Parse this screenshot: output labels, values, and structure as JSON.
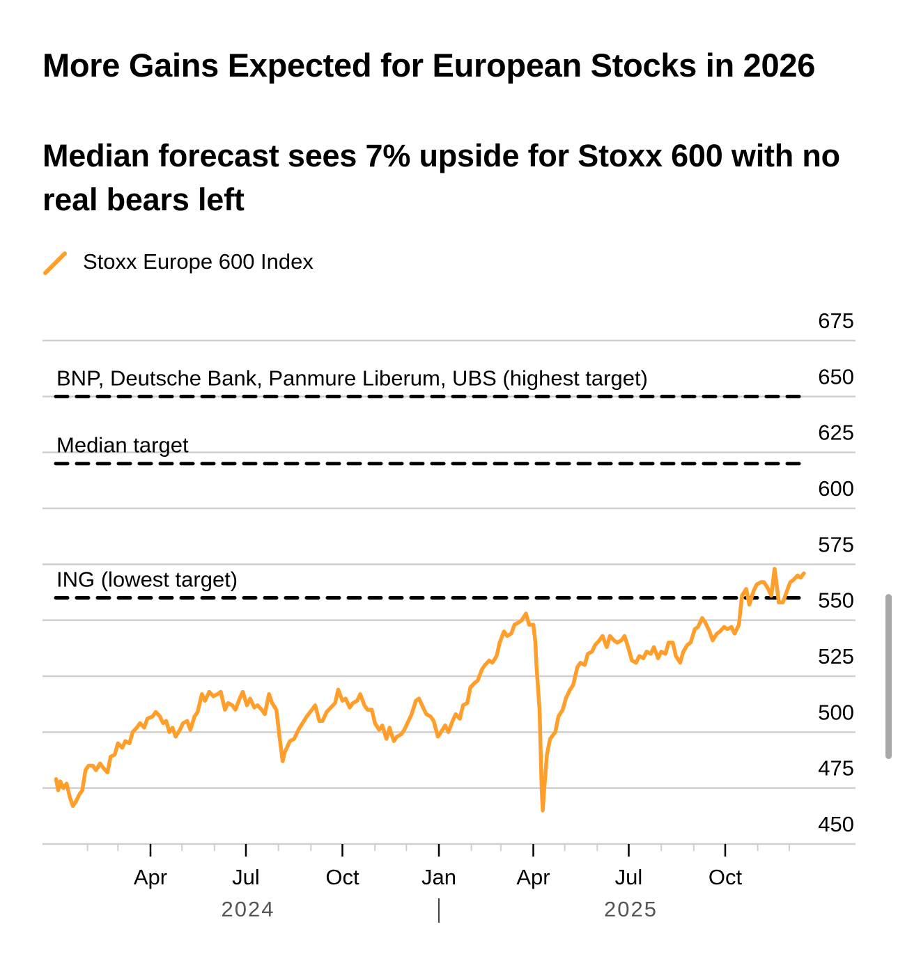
{
  "header": {
    "title": "More Gains Expected for European Stocks in 2026",
    "subtitle": "Median forecast sees 7% upside for Stoxx 600 with no real bears left"
  },
  "legend": {
    "label": "Stoxx Europe 600 Index",
    "color": "#ff9e2a"
  },
  "colors": {
    "line": "#ff9e2a",
    "grid": "#cfcfcf",
    "reference": "#000000",
    "year_label": "#555555"
  },
  "chart_data": {
    "type": "line",
    "title": "More Gains Expected for European Stocks in 2026",
    "subtitle": "Median forecast sees 7% upside for Stoxx 600 with no real bears left",
    "xlabel": "",
    "ylabel": "",
    "ylim": [
      450,
      675
    ],
    "yticks": [
      675,
      650,
      625,
      600,
      575,
      550,
      525,
      500,
      475,
      450
    ],
    "y_axis_position": "right",
    "grid": true,
    "legend_position": "top-left",
    "x_range": [
      "2024-01-01",
      "2025-12-31"
    ],
    "xticks": [
      {
        "date": "2024-04-01",
        "label": "Apr"
      },
      {
        "date": "2024-07-01",
        "label": "Jul"
      },
      {
        "date": "2024-10-01",
        "label": "Oct"
      },
      {
        "date": "2025-01-01",
        "label": "Jan"
      },
      {
        "date": "2025-04-01",
        "label": "Apr"
      },
      {
        "date": "2025-07-01",
        "label": "Jul"
      },
      {
        "date": "2025-10-01",
        "label": "Oct"
      }
    ],
    "year_labels": [
      {
        "label": "2024",
        "date": "2024-07-01"
      },
      {
        "label": "2025",
        "date": "2025-07-01"
      }
    ],
    "year_divider": "2025-01-01",
    "reference_lines": [
      {
        "value": 650,
        "label": "BNP, Deutsche Bank, Panmure Liberum, UBS (highest target)"
      },
      {
        "value": 620,
        "label": "Median target"
      },
      {
        "value": 560,
        "label": "ING (lowest target)"
      }
    ],
    "series": [
      {
        "name": "Stoxx Europe 600 Index",
        "points": [
          [
            "2024-01-02",
            479
          ],
          [
            "2024-01-04",
            474
          ],
          [
            "2024-01-06",
            478
          ],
          [
            "2024-01-09",
            475
          ],
          [
            "2024-01-12",
            477
          ],
          [
            "2024-01-15",
            471
          ],
          [
            "2024-01-18",
            467
          ],
          [
            "2024-01-21",
            469
          ],
          [
            "2024-01-24",
            472
          ],
          [
            "2024-01-27",
            474
          ],
          [
            "2024-01-30",
            483
          ],
          [
            "2024-02-02",
            485
          ],
          [
            "2024-02-06",
            485
          ],
          [
            "2024-02-09",
            483
          ],
          [
            "2024-02-13",
            486
          ],
          [
            "2024-02-16",
            484
          ],
          [
            "2024-02-20",
            482
          ],
          [
            "2024-02-23",
            489
          ],
          [
            "2024-02-27",
            490
          ],
          [
            "2024-03-01",
            495
          ],
          [
            "2024-03-05",
            493
          ],
          [
            "2024-03-08",
            496
          ],
          [
            "2024-03-12",
            495
          ],
          [
            "2024-03-15",
            500
          ],
          [
            "2024-03-19",
            502
          ],
          [
            "2024-03-22",
            504
          ],
          [
            "2024-03-26",
            502
          ],
          [
            "2024-03-29",
            506
          ],
          [
            "2024-04-03",
            507
          ],
          [
            "2024-04-06",
            509
          ],
          [
            "2024-04-10",
            507
          ],
          [
            "2024-04-13",
            504
          ],
          [
            "2024-04-16",
            505
          ],
          [
            "2024-04-19",
            500
          ],
          [
            "2024-04-22",
            502
          ],
          [
            "2024-04-25",
            498
          ],
          [
            "2024-04-29",
            501
          ],
          [
            "2024-05-02",
            504
          ],
          [
            "2024-05-06",
            505
          ],
          [
            "2024-05-09",
            501
          ],
          [
            "2024-05-13",
            507
          ],
          [
            "2024-05-16",
            509
          ],
          [
            "2024-05-20",
            517
          ],
          [
            "2024-05-23",
            514
          ],
          [
            "2024-05-27",
            518
          ],
          [
            "2024-05-31",
            516
          ],
          [
            "2024-06-04",
            517
          ],
          [
            "2024-06-07",
            518
          ],
          [
            "2024-06-11",
            510
          ],
          [
            "2024-06-14",
            513
          ],
          [
            "2024-06-18",
            512
          ],
          [
            "2024-06-21",
            510
          ],
          [
            "2024-06-25",
            515
          ],
          [
            "2024-06-28",
            518
          ],
          [
            "2024-07-02",
            512
          ],
          [
            "2024-07-05",
            515
          ],
          [
            "2024-07-09",
            511
          ],
          [
            "2024-07-12",
            512
          ],
          [
            "2024-07-16",
            510
          ],
          [
            "2024-07-19",
            508
          ],
          [
            "2024-07-23",
            517
          ],
          [
            "2024-07-26",
            513
          ],
          [
            "2024-07-30",
            510
          ],
          [
            "2024-08-02",
            498
          ],
          [
            "2024-08-05",
            487
          ],
          [
            "2024-08-07",
            491
          ],
          [
            "2024-08-12",
            496
          ],
          [
            "2024-08-16",
            497
          ],
          [
            "2024-08-20",
            501
          ],
          [
            "2024-08-24",
            504
          ],
          [
            "2024-08-28",
            507
          ],
          [
            "2024-09-02",
            510
          ],
          [
            "2024-09-05",
            512
          ],
          [
            "2024-09-09",
            505
          ],
          [
            "2024-09-12",
            505
          ],
          [
            "2024-09-16",
            509
          ],
          [
            "2024-09-20",
            511
          ],
          [
            "2024-09-24",
            513
          ],
          [
            "2024-09-27",
            519
          ],
          [
            "2024-10-01",
            514
          ],
          [
            "2024-10-04",
            515
          ],
          [
            "2024-10-08",
            511
          ],
          [
            "2024-10-11",
            513
          ],
          [
            "2024-10-15",
            514
          ],
          [
            "2024-10-18",
            517
          ],
          [
            "2024-10-22",
            512
          ],
          [
            "2024-10-25",
            510
          ],
          [
            "2024-10-29",
            510
          ],
          [
            "2024-11-01",
            504
          ],
          [
            "2024-11-05",
            501
          ],
          [
            "2024-11-08",
            503
          ],
          [
            "2024-11-12",
            497
          ],
          [
            "2024-11-15",
            502
          ],
          [
            "2024-11-19",
            496
          ],
          [
            "2024-11-22",
            498
          ],
          [
            "2024-11-26",
            499
          ],
          [
            "2024-11-29",
            501
          ],
          [
            "2024-12-03",
            505
          ],
          [
            "2024-12-06",
            508
          ],
          [
            "2024-12-10",
            514
          ],
          [
            "2024-12-13",
            515
          ],
          [
            "2024-12-17",
            511
          ],
          [
            "2024-12-20",
            508
          ],
          [
            "2024-12-24",
            507
          ],
          [
            "2024-12-27",
            505
          ],
          [
            "2024-12-31",
            498
          ],
          [
            "2025-01-03",
            500
          ],
          [
            "2025-01-07",
            503
          ],
          [
            "2025-01-10",
            500
          ],
          [
            "2025-01-14",
            505
          ],
          [
            "2025-01-17",
            508
          ],
          [
            "2025-01-21",
            506
          ],
          [
            "2025-01-24",
            512
          ],
          [
            "2025-01-28",
            513
          ],
          [
            "2025-01-31",
            520
          ],
          [
            "2025-02-04",
            522
          ],
          [
            "2025-02-07",
            523
          ],
          [
            "2025-02-11",
            528
          ],
          [
            "2025-02-14",
            530
          ],
          [
            "2025-02-18",
            532
          ],
          [
            "2025-02-21",
            531
          ],
          [
            "2025-02-25",
            534
          ],
          [
            "2025-02-28",
            540
          ],
          [
            "2025-03-04",
            545
          ],
          [
            "2025-03-07",
            543
          ],
          [
            "2025-03-11",
            544
          ],
          [
            "2025-03-14",
            548
          ],
          [
            "2025-03-18",
            549
          ],
          [
            "2025-03-21",
            550
          ],
          [
            "2025-03-25",
            553
          ],
          [
            "2025-03-28",
            548
          ],
          [
            "2025-04-01",
            548
          ],
          [
            "2025-04-03",
            540
          ],
          [
            "2025-04-04",
            530
          ],
          [
            "2025-04-07",
            510
          ],
          [
            "2025-04-09",
            475
          ],
          [
            "2025-04-10",
            465
          ],
          [
            "2025-04-11",
            472
          ],
          [
            "2025-04-14",
            490
          ],
          [
            "2025-04-17",
            497
          ],
          [
            "2025-04-22",
            500
          ],
          [
            "2025-04-25",
            507
          ],
          [
            "2025-04-29",
            510
          ],
          [
            "2025-05-02",
            515
          ],
          [
            "2025-05-06",
            519
          ],
          [
            "2025-05-09",
            521
          ],
          [
            "2025-05-13",
            529
          ],
          [
            "2025-05-16",
            531
          ],
          [
            "2025-05-20",
            530
          ],
          [
            "2025-05-23",
            535
          ],
          [
            "2025-05-27",
            536
          ],
          [
            "2025-05-30",
            539
          ],
          [
            "2025-06-03",
            541
          ],
          [
            "2025-06-06",
            543
          ],
          [
            "2025-06-10",
            538
          ],
          [
            "2025-06-13",
            543
          ],
          [
            "2025-06-17",
            541
          ],
          [
            "2025-06-20",
            540
          ],
          [
            "2025-06-24",
            541
          ],
          [
            "2025-06-27",
            543
          ],
          [
            "2025-07-01",
            537
          ],
          [
            "2025-07-04",
            532
          ],
          [
            "2025-07-08",
            531
          ],
          [
            "2025-07-11",
            534
          ],
          [
            "2025-07-15",
            533
          ],
          [
            "2025-07-18",
            536
          ],
          [
            "2025-07-22",
            535
          ],
          [
            "2025-07-25",
            538
          ],
          [
            "2025-07-29",
            533
          ],
          [
            "2025-08-01",
            536
          ],
          [
            "2025-08-05",
            535
          ],
          [
            "2025-08-08",
            540
          ],
          [
            "2025-08-12",
            540
          ],
          [
            "2025-08-15",
            534
          ],
          [
            "2025-08-19",
            531
          ],
          [
            "2025-08-22",
            536
          ],
          [
            "2025-08-26",
            539
          ],
          [
            "2025-08-29",
            540
          ],
          [
            "2025-09-02",
            546
          ],
          [
            "2025-09-05",
            547
          ],
          [
            "2025-09-09",
            551
          ],
          [
            "2025-09-12",
            549
          ],
          [
            "2025-09-16",
            545
          ],
          [
            "2025-09-19",
            541
          ],
          [
            "2025-09-23",
            544
          ],
          [
            "2025-09-26",
            545
          ],
          [
            "2025-09-30",
            547
          ],
          [
            "2025-10-03",
            546
          ],
          [
            "2025-10-07",
            547
          ],
          [
            "2025-10-10",
            544
          ],
          [
            "2025-10-14",
            548
          ],
          [
            "2025-10-17",
            561
          ],
          [
            "2025-10-21",
            564
          ],
          [
            "2025-10-24",
            557
          ],
          [
            "2025-10-28",
            563
          ],
          [
            "2025-10-31",
            566
          ],
          [
            "2025-11-04",
            567
          ],
          [
            "2025-11-07",
            567
          ],
          [
            "2025-11-11",
            564
          ],
          [
            "2025-11-14",
            561
          ],
          [
            "2025-11-17",
            573
          ],
          [
            "2025-11-19",
            566
          ],
          [
            "2025-11-21",
            558
          ],
          [
            "2025-11-25",
            558
          ],
          [
            "2025-11-28",
            562
          ],
          [
            "2025-12-02",
            567
          ],
          [
            "2025-12-05",
            568
          ],
          [
            "2025-12-09",
            570
          ],
          [
            "2025-12-12",
            569
          ],
          [
            "2025-12-15",
            571
          ]
        ]
      }
    ]
  },
  "scrollbar": {
    "visible": true
  }
}
